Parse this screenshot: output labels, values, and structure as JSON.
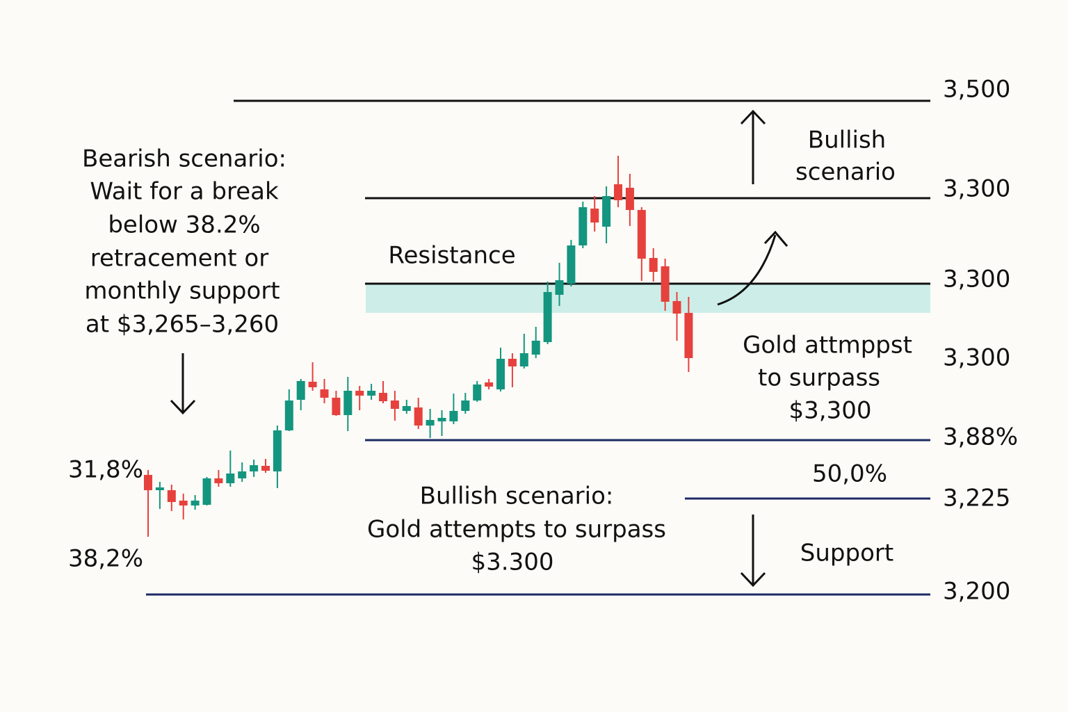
{
  "levels": [
    "3,500",
    "3,300",
    "3,300",
    "3,300",
    "3,88%",
    "3,225",
    "3,200"
  ],
  "annotations": {
    "bearish": [
      "Bearish scenario:",
      "Wait for a break",
      "below 38.2%",
      "retracement or",
      "monthly support",
      "at $3,265–3,260"
    ],
    "bullish_top": [
      "Bullish",
      "scenario"
    ],
    "resistance": "Resistance",
    "gold_attempts": [
      "Gold attmppst",
      "to surpass",
      "$3,300"
    ],
    "fib_50": "50,0%",
    "bullish_bottom": [
      "Bullish scenario:",
      "Gold attempts to surpass",
      "$3.300"
    ],
    "support": "Support",
    "fib_318": "31,8%",
    "fib_382": "38,2%"
  }
}
